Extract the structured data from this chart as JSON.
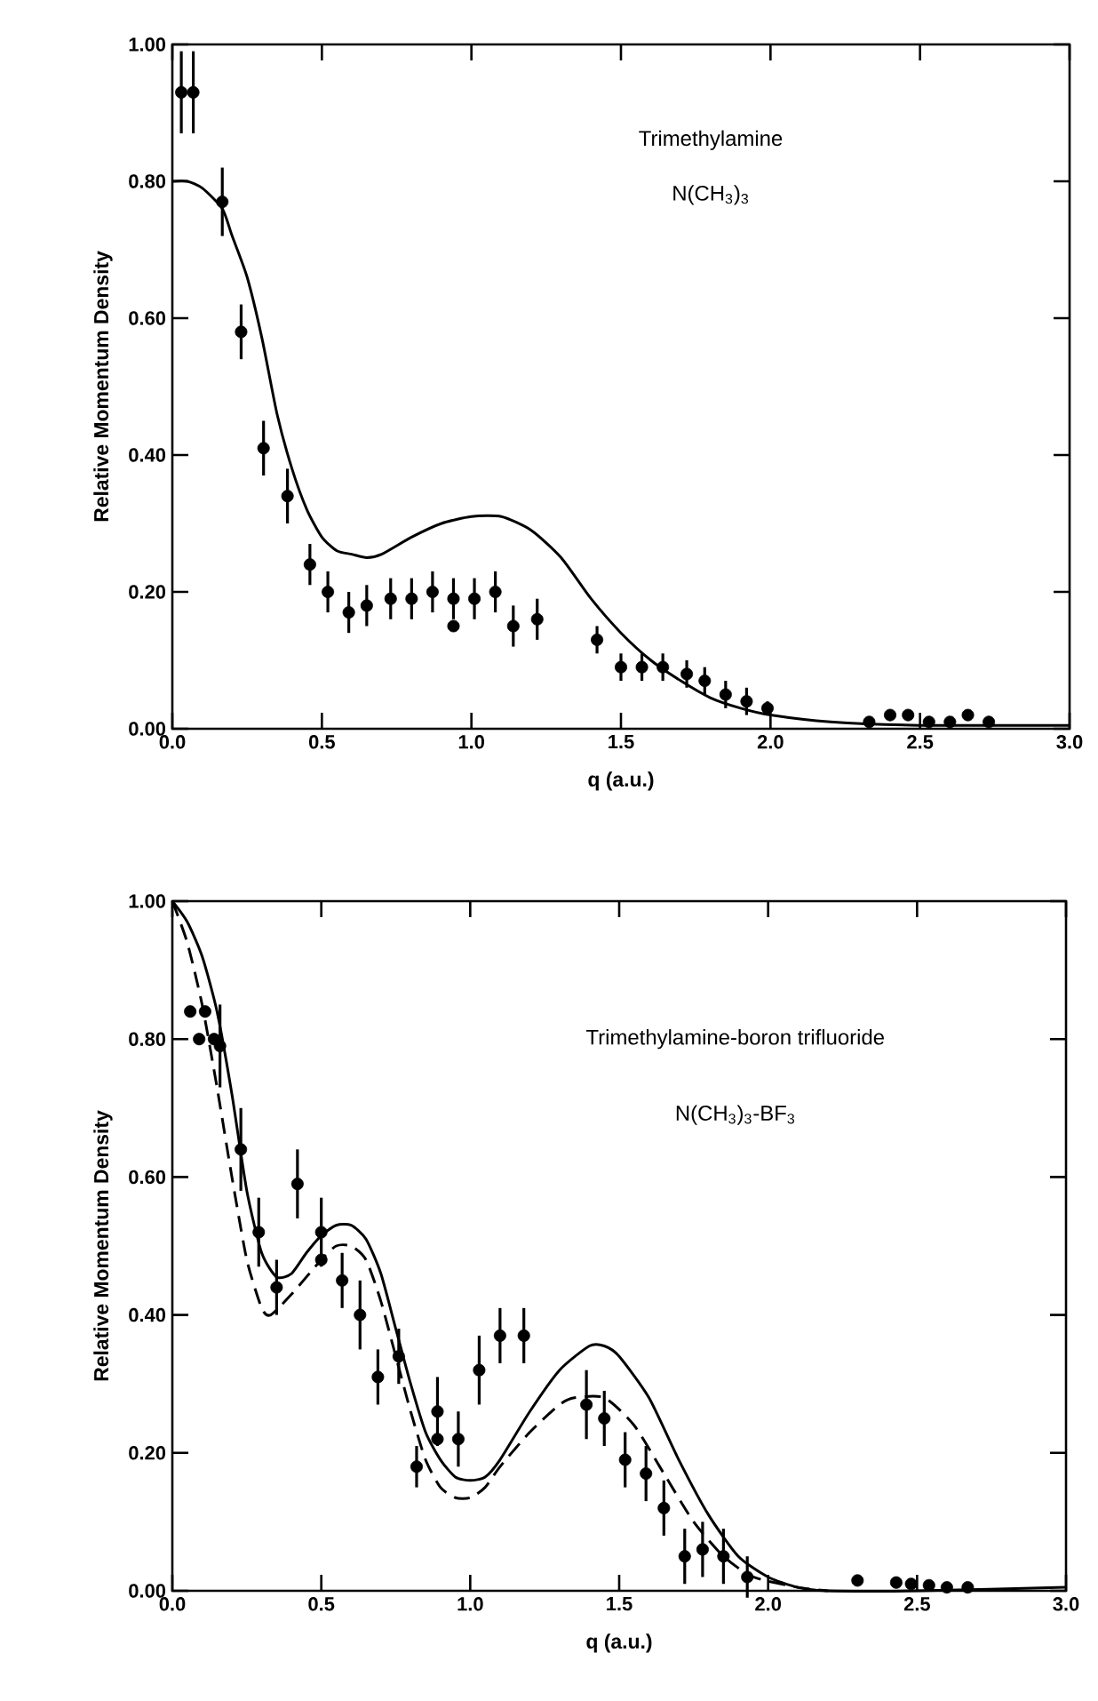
{
  "chart_data": [
    {
      "type": "scatter",
      "xlabel": "q (a.u.)",
      "ylabel": "Relative Momentum Density",
      "annotations": [
        "Trimethylamine",
        "N(CH$_{3}$)$_{3}$"
      ],
      "xlim": [
        0,
        3
      ],
      "ylim": [
        0,
        1
      ],
      "xticks": [
        {
          "value": 0,
          "label": "0.0"
        },
        {
          "value": 0.5,
          "label": "0.5"
        },
        {
          "value": 1,
          "label": "1.0"
        },
        {
          "value": 1.5,
          "label": "1.5"
        },
        {
          "value": 2,
          "label": "2.0"
        },
        {
          "value": 2.5,
          "label": "2.5"
        },
        {
          "value": 3,
          "label": "3.0"
        }
      ],
      "yticks": [
        {
          "value": 0,
          "label": "0.00"
        },
        {
          "value": 0.2,
          "label": "0.20"
        },
        {
          "value": 0.4,
          "label": "0.40"
        },
        {
          "value": 0.6,
          "label": "0.60"
        },
        {
          "value": 0.8,
          "label": "0.80"
        },
        {
          "value": 1,
          "label": "1.00"
        }
      ],
      "series": [
        {
          "marker": "circle",
          "color": "#000000",
          "x": [
            0.03,
            0.07,
            0.167,
            0.23,
            0.305,
            0.385,
            0.46,
            0.52,
            0.59,
            0.65,
            0.73,
            0.8,
            0.87,
            0.94,
            0.94,
            1.01,
            1.08,
            1.14,
            1.22,
            1.42,
            1.5,
            1.57,
            1.64,
            1.72,
            1.78,
            1.85,
            1.92,
            1.99,
            2.33,
            2.4,
            2.46,
            2.53,
            2.6,
            2.66,
            2.73
          ],
          "values": [
            0.93,
            0.93,
            0.77,
            0.58,
            0.41,
            0.34,
            0.24,
            0.2,
            0.17,
            0.18,
            0.19,
            0.19,
            0.2,
            0.19,
            0.15,
            0.19,
            0.2,
            0.15,
            0.16,
            0.13,
            0.09,
            0.09,
            0.09,
            0.08,
            0.07,
            0.05,
            0.04,
            0.03,
            0.01,
            0.02,
            0.02,
            0.01,
            0.01,
            0.02,
            0.01
          ],
          "errors": [
            0.06,
            0.06,
            0.05,
            0.04,
            0.04,
            0.04,
            0.03,
            0.03,
            0.03,
            0.03,
            0.03,
            0.03,
            0.03,
            0.03,
            null,
            0.03,
            0.03,
            0.03,
            0.03,
            0.02,
            0.02,
            0.02,
            0.02,
            0.02,
            0.02,
            0.02,
            0.02,
            0.01,
            null,
            null,
            null,
            null,
            null,
            null,
            null
          ]
        },
        {
          "type": "line",
          "marker": "none",
          "line_style": "solid",
          "color": "#000000",
          "x": [
            0,
            0.05,
            0.1,
            0.167,
            0.2,
            0.25,
            0.3,
            0.35,
            0.4,
            0.45,
            0.5,
            0.55,
            0.6,
            0.65,
            0.7,
            0.8,
            0.9,
            1.0,
            1.1,
            1.2,
            1.3,
            1.4,
            1.5,
            1.6,
            1.7,
            1.8,
            1.9,
            2.0,
            2.2,
            2.5,
            3.0
          ],
          "values": [
            0.8,
            0.8,
            0.79,
            0.76,
            0.72,
            0.66,
            0.57,
            0.46,
            0.38,
            0.32,
            0.28,
            0.26,
            0.255,
            0.25,
            0.255,
            0.28,
            0.3,
            0.31,
            0.31,
            0.29,
            0.25,
            0.19,
            0.14,
            0.1,
            0.07,
            0.045,
            0.03,
            0.02,
            0.01,
            0.005,
            0.005
          ]
        }
      ]
    },
    {
      "type": "scatter",
      "xlabel": "q (a.u.)",
      "ylabel": "Relative Momentum Density",
      "annotations": [
        "Trimethylamine-boron trifluoride",
        "N(CH$_{3}$)$_{3}$-BF$_{3}$"
      ],
      "xlim": [
        0,
        3
      ],
      "ylim": [
        0,
        1
      ],
      "xticks": [
        {
          "value": 0,
          "label": "0.0"
        },
        {
          "value": 0.5,
          "label": "0.5"
        },
        {
          "value": 1,
          "label": "1.0"
        },
        {
          "value": 1.5,
          "label": "1.5"
        },
        {
          "value": 2,
          "label": "2.0"
        },
        {
          "value": 2.5,
          "label": "2.5"
        },
        {
          "value": 3,
          "label": "3.0"
        }
      ],
      "yticks": [
        {
          "value": 0,
          "label": "0.00"
        },
        {
          "value": 0.2,
          "label": "0.20"
        },
        {
          "value": 0.4,
          "label": "0.40"
        },
        {
          "value": 0.6,
          "label": "0.60"
        },
        {
          "value": 0.8,
          "label": "0.80"
        },
        {
          "value": 1,
          "label": "1.00"
        }
      ],
      "series": [
        {
          "marker": "circle",
          "color": "#000000",
          "x": [
            0.06,
            0.11,
            0.09,
            0.14,
            0.16,
            0.23,
            0.29,
            0.35,
            0.42,
            0.5,
            0.5,
            0.57,
            0.63,
            0.69,
            0.76,
            0.82,
            0.89,
            0.89,
            0.96,
            1.03,
            1.1,
            1.18,
            1.39,
            1.45,
            1.52,
            1.59,
            1.65,
            1.72,
            1.78,
            1.85,
            1.93,
            2.3,
            2.43,
            2.48,
            2.54,
            2.6,
            2.67
          ],
          "values": [
            0.84,
            0.84,
            0.8,
            0.8,
            0.79,
            0.64,
            0.52,
            0.44,
            0.59,
            0.52,
            0.48,
            0.45,
            0.4,
            0.31,
            0.34,
            0.18,
            0.26,
            0.22,
            0.22,
            0.32,
            0.37,
            0.37,
            0.27,
            0.25,
            0.19,
            0.17,
            0.12,
            0.05,
            0.06,
            0.05,
            0.02,
            0.015,
            0.012,
            0.01,
            0.008,
            0.005,
            0.005
          ],
          "errors": [
            null,
            null,
            null,
            null,
            0.06,
            0.06,
            0.05,
            0.04,
            0.05,
            0.05,
            null,
            0.04,
            0.05,
            0.04,
            0.04,
            0.03,
            0.05,
            null,
            0.04,
            0.05,
            0.04,
            0.04,
            0.05,
            0.04,
            0.04,
            0.04,
            0.04,
            0.04,
            0.04,
            0.04,
            0.03,
            null,
            null,
            null,
            null,
            null,
            null
          ]
        },
        {
          "type": "line",
          "marker": "none",
          "line_style": "solid",
          "color": "#000000",
          "x": [
            0,
            0.05,
            0.1,
            0.15,
            0.2,
            0.25,
            0.3,
            0.35,
            0.4,
            0.45,
            0.5,
            0.55,
            0.6,
            0.65,
            0.7,
            0.75,
            0.8,
            0.85,
            0.9,
            0.95,
            1.0,
            1.05,
            1.1,
            1.2,
            1.3,
            1.4,
            1.45,
            1.5,
            1.6,
            1.7,
            1.8,
            1.9,
            2.0,
            2.1,
            2.2,
            2.5,
            3.0
          ],
          "values": [
            1.0,
            0.97,
            0.92,
            0.84,
            0.72,
            0.58,
            0.49,
            0.455,
            0.46,
            0.49,
            0.515,
            0.53,
            0.53,
            0.51,
            0.46,
            0.38,
            0.3,
            0.23,
            0.19,
            0.165,
            0.16,
            0.165,
            0.19,
            0.26,
            0.32,
            0.355,
            0.355,
            0.34,
            0.28,
            0.19,
            0.11,
            0.05,
            0.02,
            0.005,
            0.0,
            0.0,
            0.005
          ]
        },
        {
          "type": "line",
          "marker": "none",
          "line_style": "dashed",
          "color": "#000000",
          "x": [
            0,
            0.05,
            0.1,
            0.15,
            0.2,
            0.25,
            0.3,
            0.33,
            0.4,
            0.5,
            0.55,
            0.6,
            0.65,
            0.7,
            0.75,
            0.8,
            0.85,
            0.9,
            0.95,
            1.0,
            1.05,
            1.1,
            1.2,
            1.3,
            1.35,
            1.45,
            1.55,
            1.65,
            1.75,
            1.85,
            1.95,
            2.1,
            2.2
          ],
          "values": [
            1.0,
            0.94,
            0.85,
            0.73,
            0.6,
            0.48,
            0.41,
            0.4,
            0.43,
            0.48,
            0.5,
            0.5,
            0.48,
            0.42,
            0.34,
            0.26,
            0.19,
            0.15,
            0.135,
            0.135,
            0.15,
            0.18,
            0.23,
            0.27,
            0.28,
            0.28,
            0.24,
            0.17,
            0.1,
            0.05,
            0.02,
            0.005,
            0.0
          ]
        }
      ]
    }
  ]
}
